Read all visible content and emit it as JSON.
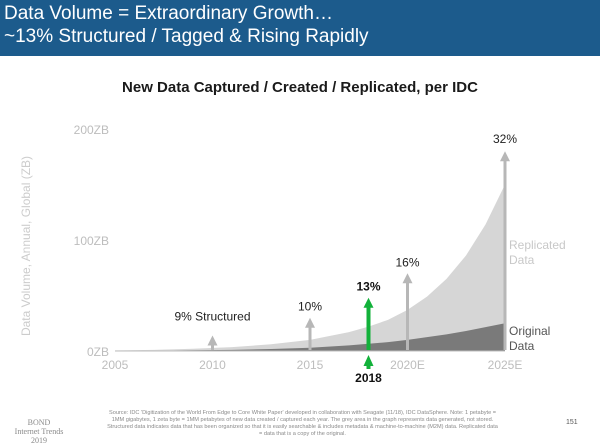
{
  "header": {
    "line1": "Data Volume = Extraordinary Growth…",
    "line2": "~13% Structured / Tagged & Rising Rapidly"
  },
  "colors": {
    "header_bg": "#1c5b8c",
    "replicated": "#d6d6d6",
    "original": "#7a7a7a",
    "arrow": "#b7b7b7",
    "highlight_arrow": "#12b13a"
  },
  "chart_data": {
    "type": "area",
    "title": "New Data Captured / Created / Replicated, per IDC",
    "ylabel": "Data Volume, Annual, Global (ZB)",
    "xlabel": "",
    "x_ticks": [
      "2005",
      "2010",
      "2015",
      "2020E",
      "2025E"
    ],
    "y_ticks": [
      "0ZB",
      "100ZB",
      "200ZB"
    ],
    "xlim": [
      2005,
      2025
    ],
    "ylim": [
      0,
      200
    ],
    "grid": false,
    "series": [
      {
        "name": "Replicated Data",
        "x": [
          2005,
          2007,
          2009,
          2011,
          2013,
          2015,
          2017,
          2018,
          2019,
          2020,
          2021,
          2022,
          2023,
          2024,
          2025
        ],
        "values": [
          0.5,
          1,
          2,
          3.5,
          6,
          10,
          17,
          22,
          28,
          37,
          49,
          65,
          86,
          114,
          150
        ]
      },
      {
        "name": "Original Data",
        "x": [
          2005,
          2007,
          2009,
          2011,
          2013,
          2015,
          2017,
          2018,
          2019,
          2020,
          2021,
          2022,
          2023,
          2024,
          2025
        ],
        "values": [
          0.1,
          0.3,
          0.6,
          1,
          1.8,
          3,
          5,
          6.5,
          8,
          10,
          12.5,
          15,
          18,
          21.5,
          25
        ]
      }
    ],
    "structured_share": [
      {
        "x": 2010,
        "top": 14,
        "label": "9% Structured",
        "highlight": false
      },
      {
        "x": 2015,
        "top": 30,
        "label": "10%",
        "highlight": false
      },
      {
        "x": 2020,
        "top": 70,
        "label": "16%",
        "highlight": false
      },
      {
        "x": 2025,
        "top": 180,
        "label": "32%",
        "highlight": false
      }
    ],
    "highlight": {
      "x": 2018,
      "top": 48,
      "label": "13%",
      "year_label": "2018"
    }
  },
  "footer": {
    "logo_line1": "BOND",
    "logo_line2": "Internet Trends",
    "logo_line3": "2019",
    "source": "Source: IDC 'Digitization of the World From Edge to Core White Paper' developed in collaboration with Seagate (11/18), IDC DataSphere. Note: 1 petabyte = 1MM gigabytes, 1 zeta byte = 1MM petabytes of new data created / captured each year. The grey area in the graph represents data generated, not stored. Structured data indicates data that has been organized so that it is easily searchable & includes metadata & machine-to-machine (M2M) data. Replicated data = data that is a copy of the original.",
    "page": "151"
  }
}
